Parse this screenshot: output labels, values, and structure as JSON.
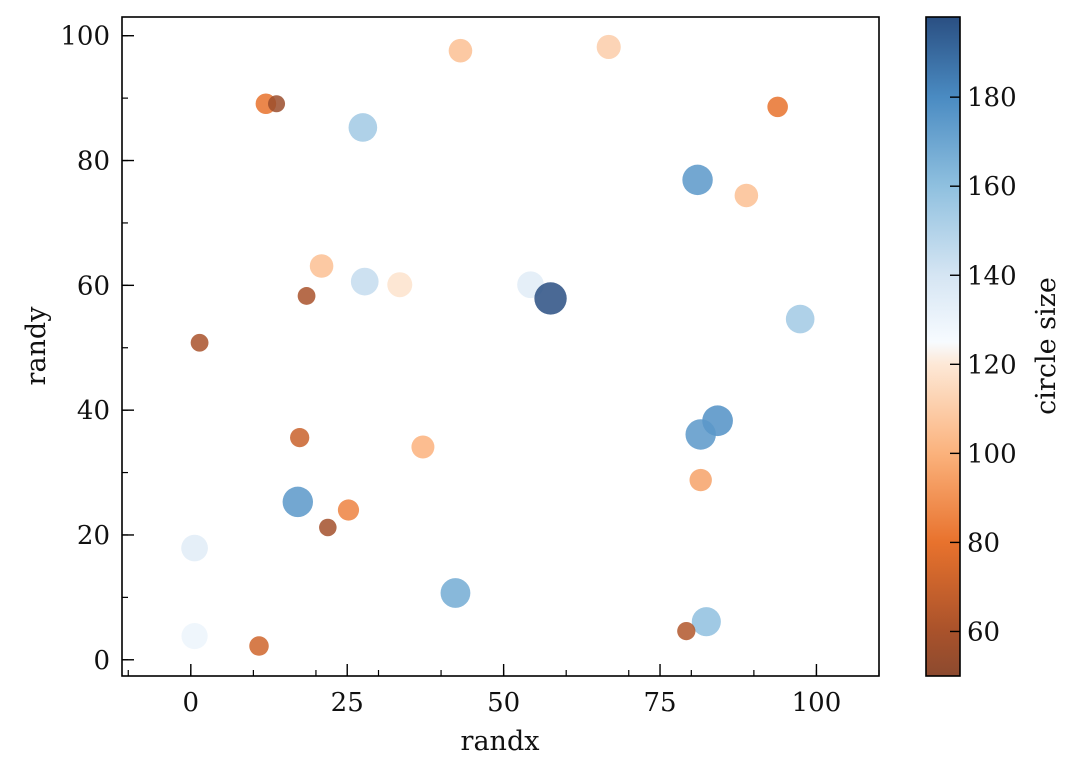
{
  "chart_data": {
    "type": "scatter",
    "title": "",
    "xlabel": "randx",
    "ylabel": "randy",
    "xlim": [
      -11,
      110
    ],
    "ylim": [
      -2.6,
      103
    ],
    "xticks": [
      0,
      25,
      50,
      75,
      100
    ],
    "yticks": [
      0,
      20,
      40,
      60,
      80,
      100
    ],
    "grid": false,
    "colorbar": {
      "label": "circle size",
      "range": [
        50,
        198
      ],
      "ticks": [
        60,
        80,
        100,
        120,
        140,
        160,
        180
      ],
      "colormap_stops": [
        {
          "v": 50,
          "c": "#8c4a2f"
        },
        {
          "v": 60,
          "c": "#a9522b"
        },
        {
          "v": 80,
          "c": "#e8722d"
        },
        {
          "v": 100,
          "c": "#fbb27c"
        },
        {
          "v": 120,
          "c": "#fde8d6"
        },
        {
          "v": 125,
          "c": "#f7fbff"
        },
        {
          "v": 140,
          "c": "#d5e5f3"
        },
        {
          "v": 160,
          "c": "#8fc0df"
        },
        {
          "v": 180,
          "c": "#4a8bc2"
        },
        {
          "v": 198,
          "c": "#2a4f82"
        }
      ]
    },
    "points": [
      {
        "x": 12.0,
        "y": 89.1,
        "size": 80
      },
      {
        "x": 13.7,
        "y": 89.1,
        "size": 55
      },
      {
        "x": 27.5,
        "y": 85.3,
        "size": 155
      },
      {
        "x": 43.1,
        "y": 97.6,
        "size": 105
      },
      {
        "x": 66.8,
        "y": 98.2,
        "size": 110
      },
      {
        "x": 93.8,
        "y": 88.6,
        "size": 80
      },
      {
        "x": 81.0,
        "y": 76.9,
        "size": 175
      },
      {
        "x": 88.8,
        "y": 74.4,
        "size": 105
      },
      {
        "x": 20.9,
        "y": 63.1,
        "size": 105
      },
      {
        "x": 27.8,
        "y": 60.6,
        "size": 145
      },
      {
        "x": 33.4,
        "y": 60.1,
        "size": 118
      },
      {
        "x": 18.5,
        "y": 58.3,
        "size": 60
      },
      {
        "x": 54.3,
        "y": 60.1,
        "size": 135
      },
      {
        "x": 57.5,
        "y": 57.9,
        "size": 198
      },
      {
        "x": 97.4,
        "y": 54.6,
        "size": 155
      },
      {
        "x": 1.4,
        "y": 50.8,
        "size": 60
      },
      {
        "x": 17.4,
        "y": 35.6,
        "size": 70
      },
      {
        "x": 37.1,
        "y": 34.1,
        "size": 100
      },
      {
        "x": 84.2,
        "y": 38.3,
        "size": 178
      },
      {
        "x": 81.5,
        "y": 36.1,
        "size": 175
      },
      {
        "x": 81.5,
        "y": 28.8,
        "size": 95
      },
      {
        "x": 17.1,
        "y": 25.3,
        "size": 175
      },
      {
        "x": 25.2,
        "y": 24.0,
        "size": 85
      },
      {
        "x": 21.9,
        "y": 21.2,
        "size": 58
      },
      {
        "x": 0.6,
        "y": 17.9,
        "size": 135
      },
      {
        "x": 42.3,
        "y": 10.7,
        "size": 168
      },
      {
        "x": 82.4,
        "y": 6.1,
        "size": 160
      },
      {
        "x": 79.2,
        "y": 4.6,
        "size": 63
      },
      {
        "x": 0.6,
        "y": 3.8,
        "size": 130
      },
      {
        "x": 10.9,
        "y": 2.2,
        "size": 72
      }
    ]
  }
}
